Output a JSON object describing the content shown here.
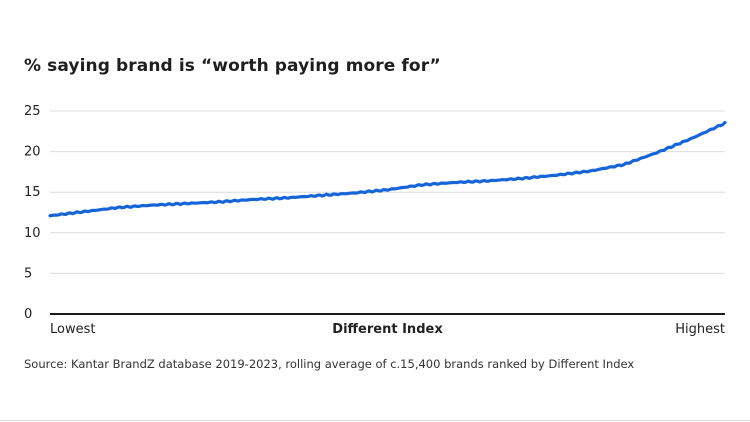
{
  "chart_data": {
    "type": "line",
    "title": "% saying brand is “worth paying more for”",
    "xlabel": "Different Index",
    "x_start_label": "Lowest",
    "x_end_label": "Highest",
    "ylabel": "",
    "ylim": [
      0,
      25
    ],
    "yticks": [
      "0",
      "5",
      "10",
      "15",
      "20",
      "25"
    ],
    "grid": true,
    "x": [
      0,
      5,
      10,
      15,
      20,
      25,
      30,
      35,
      40,
      45,
      50,
      55,
      60,
      65,
      70,
      75,
      80,
      85,
      90,
      95,
      100
    ],
    "series": [
      {
        "values": [
          12.1,
          12.6,
          13.1,
          13.4,
          13.6,
          13.8,
          14.1,
          14.3,
          14.6,
          14.9,
          15.3,
          15.9,
          16.2,
          16.4,
          16.7,
          17.1,
          17.6,
          18.4,
          19.9,
          21.6,
          23.5
        ]
      }
    ],
    "source": "Source: Kantar BrandZ database 2019-2023, rolling average of c.15,400 brands ranked by Different Index",
    "colors": {
      "line": "#1565d8",
      "grid": "#dcdcdc",
      "axis": "#1a1a1a",
      "text": "#222222"
    }
  }
}
